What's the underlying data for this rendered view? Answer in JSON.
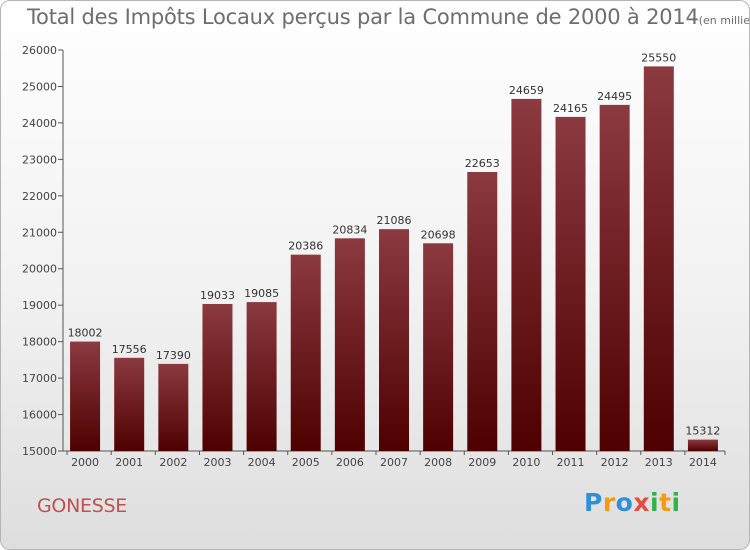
{
  "chart_data": {
    "type": "bar",
    "title": "Total des Impôts Locaux perçus par la Commune de 2000 à 2014",
    "title_unit": "(en milliers d'€)",
    "categories": [
      "2000",
      "2001",
      "2002",
      "2003",
      "2004",
      "2005",
      "2006",
      "2007",
      "2008",
      "2009",
      "2010",
      "2011",
      "2012",
      "2013",
      "2014"
    ],
    "values": [
      18002,
      17556,
      17390,
      19033,
      19085,
      20386,
      20834,
      21086,
      20698,
      22653,
      24659,
      24165,
      24495,
      25550,
      15312
    ],
    "ylim": [
      15000,
      26000
    ],
    "yticks": [
      15000,
      16000,
      17000,
      18000,
      19000,
      20000,
      21000,
      22000,
      23000,
      24000,
      25000,
      26000
    ],
    "xlabel": "",
    "ylabel": "",
    "grid": false,
    "colors": {
      "bar_top": "#8b3a40",
      "bar_bottom": "#4e0000",
      "axis": "#555555"
    }
  },
  "commune": "GONESSE",
  "logo": {
    "text": "Proxiti",
    "letter_colors": [
      "#2f8fd8",
      "#f39c12",
      "#2f8fd8",
      "#e74c3c",
      "#2fb34a",
      "#f39c12",
      "#2fb34a"
    ]
  }
}
